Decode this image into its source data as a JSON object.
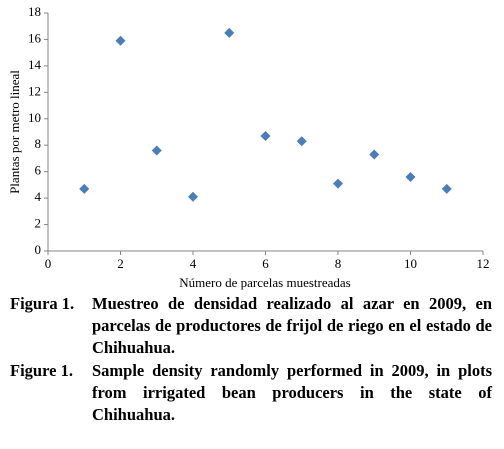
{
  "chart_data": {
    "type": "scatter",
    "x_label": "Número de parcelas muestreadas",
    "y_label": "Plantas por metro lineal",
    "series": [
      {
        "color": "#4a7ebb",
        "x": [
          1,
          2,
          3,
          4,
          5,
          6,
          7,
          8,
          9,
          10,
          11
        ],
        "values": [
          4.7,
          15.9,
          7.6,
          4.1,
          16.5,
          8.7,
          8.3,
          5.1,
          7.3,
          5.6,
          4.7
        ]
      }
    ],
    "xlim": [
      0,
      12
    ],
    "xticks": [
      0,
      2,
      4,
      6,
      8,
      10,
      12
    ],
    "ylim": [
      0,
      18
    ],
    "yticks": [
      0,
      2,
      4,
      6,
      8,
      10,
      12,
      14,
      16,
      18
    ],
    "grid": false
  },
  "captions": [
    {
      "label": "Figura 1.",
      "text": "Muestreo de densidad realizado al azar en 2009, en parcelas de productores de frijol de riego en el estado de Chihuahua."
    },
    {
      "label": "Figure 1.",
      "text": "Sample density randomly performed in 2009, in plots from irrigated bean producers in the state of Chihuahua."
    }
  ]
}
